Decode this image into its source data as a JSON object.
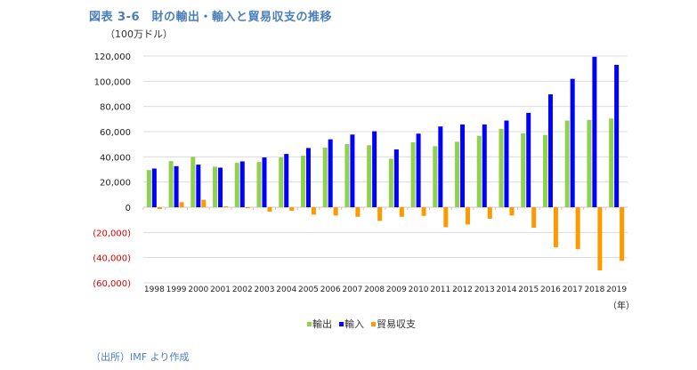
{
  "title": "図表 3-6　財の輸出・輸入と貿易収支の推移",
  "unit": "（100万ドル）",
  "source": "（出所）IMF より作成",
  "chart_data": {
    "type": "bar",
    "title": "図表 3-6　財の輸出・輸入と貿易収支の推移",
    "ylabel": "（100万ドル）",
    "xlabel": "（年）",
    "ylim": [
      -60000,
      120000
    ],
    "yticks": [
      120000,
      100000,
      80000,
      60000,
      40000,
      20000,
      0,
      -20000,
      -40000,
      -60000
    ],
    "ytick_labels": [
      "120,000",
      "100,000",
      "80,000",
      "60,000",
      "40,000",
      "20,000",
      "0",
      "(20,000)",
      "(40,000)",
      "(60,000)"
    ],
    "grid": true,
    "legend_position": "bottom",
    "categories": [
      "1998",
      "1999",
      "2000",
      "2001",
      "2002",
      "2003",
      "2004",
      "2005",
      "2006",
      "2007",
      "2008",
      "2009",
      "2010",
      "2011",
      "2012",
      "2013",
      "2014",
      "2015",
      "2016",
      "2017",
      "2018",
      "2019"
    ],
    "series": [
      {
        "name": "輸出",
        "color": "#92d050",
        "values": [
          29500,
          36600,
          40000,
          32200,
          35200,
          35900,
          39500,
          40900,
          47300,
          50100,
          49200,
          38500,
          51500,
          48500,
          52000,
          56700,
          62200,
          58600,
          57400,
          68800,
          69300,
          70400
        ]
      },
      {
        "name": "輸入",
        "color": "#0000ff",
        "values": [
          30700,
          32600,
          33800,
          31400,
          36400,
          39500,
          42300,
          47000,
          53900,
          57700,
          60300,
          45900,
          58400,
          64100,
          65700,
          65700,
          68800,
          74900,
          89600,
          101900,
          119400,
          113000
        ]
      },
      {
        "name": "貿易収支",
        "color": "#ff9900",
        "values": [
          -1400,
          4000,
          5900,
          800,
          -800,
          -3500,
          -2800,
          -5900,
          -6600,
          -7600,
          -10900,
          -7600,
          -6900,
          -15800,
          -13700,
          -9200,
          -6600,
          -16300,
          -31900,
          -33300,
          -50100,
          -42600
        ]
      }
    ]
  }
}
